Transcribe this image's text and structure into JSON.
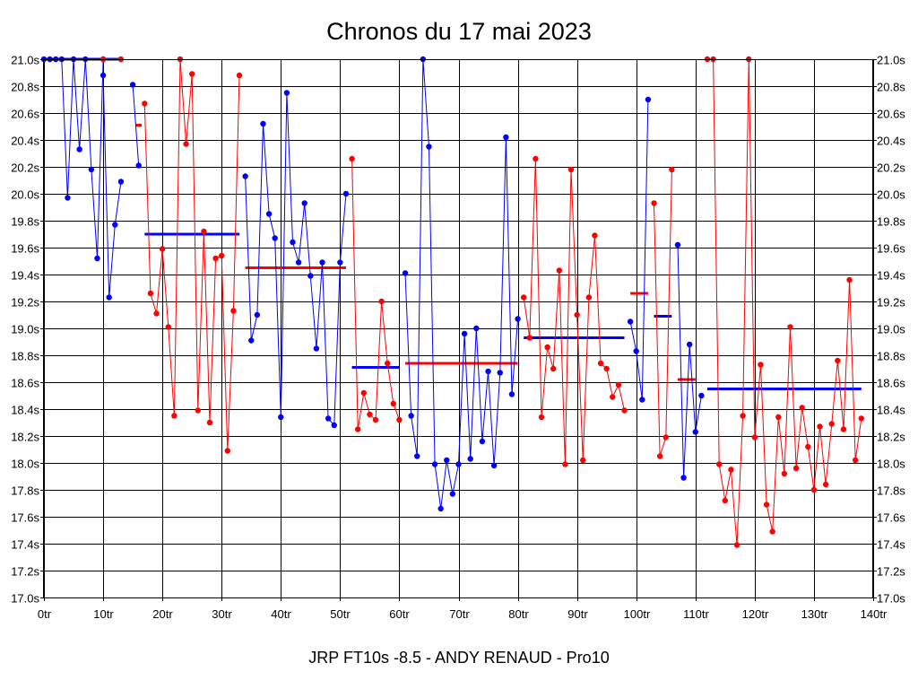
{
  "chart_data": {
    "type": "line",
    "title": "Chronos du 17 mai 2023",
    "caption": "JRP FT10s -8.5 - ANDY RENAUD - Pro10",
    "xlim": [
      0,
      140
    ],
    "ylim": [
      17.0,
      21.0
    ],
    "grid": true,
    "x_ticks": [
      {
        "v": 0,
        "label": "0tr"
      },
      {
        "v": 10,
        "label": "10tr"
      },
      {
        "v": 20,
        "label": "20tr"
      },
      {
        "v": 30,
        "label": "30tr"
      },
      {
        "v": 40,
        "label": "40tr"
      },
      {
        "v": 50,
        "label": "50tr"
      },
      {
        "v": 60,
        "label": "60tr"
      },
      {
        "v": 70,
        "label": "70tr"
      },
      {
        "v": 80,
        "label": "80tr"
      },
      {
        "v": 90,
        "label": "90tr"
      },
      {
        "v": 100,
        "label": "100tr"
      },
      {
        "v": 110,
        "label": "110tr"
      },
      {
        "v": 120,
        "label": "120tr"
      },
      {
        "v": 130,
        "label": "130tr"
      },
      {
        "v": 140,
        "label": "140tr"
      }
    ],
    "y_ticks": [
      {
        "v": 21.0,
        "label": "21.0s"
      },
      {
        "v": 20.8,
        "label": "20.8s"
      },
      {
        "v": 20.6,
        "label": "20.6s"
      },
      {
        "v": 20.4,
        "label": "20.4s"
      },
      {
        "v": 20.2,
        "label": "20.2s"
      },
      {
        "v": 20.0,
        "label": "20.0s"
      },
      {
        "v": 19.8,
        "label": "19.8s"
      },
      {
        "v": 19.6,
        "label": "19.6s"
      },
      {
        "v": 19.4,
        "label": "19.4s"
      },
      {
        "v": 19.2,
        "label": "19.2s"
      },
      {
        "v": 19.0,
        "label": "19.0s"
      },
      {
        "v": 18.8,
        "label": "18.8s"
      },
      {
        "v": 18.6,
        "label": "18.6s"
      },
      {
        "v": 18.4,
        "label": "18.4s"
      },
      {
        "v": 18.2,
        "label": "18.2s"
      },
      {
        "v": 18.0,
        "label": "18.0s"
      },
      {
        "v": 17.8,
        "label": "17.8s"
      },
      {
        "v": 17.6,
        "label": "17.6s"
      },
      {
        "v": 17.4,
        "label": "17.4s"
      },
      {
        "v": 17.2,
        "label": "17.2s"
      },
      {
        "v": 17.0,
        "label": "17.0s"
      }
    ],
    "colors": {
      "blue": "#0000ff",
      "red": "#ff0000"
    },
    "segments": [
      {
        "color": "blue",
        "points": [
          [
            0,
            21.0
          ],
          [
            1,
            21.0
          ],
          [
            2,
            21.0
          ],
          [
            3,
            21.0
          ],
          [
            4,
            19.97
          ],
          [
            5,
            21.0
          ],
          [
            6,
            20.33
          ],
          [
            7,
            21.0
          ],
          [
            8,
            20.18
          ],
          [
            9,
            19.52
          ],
          [
            10,
            21.0
          ]
        ],
        "mean": 21.0,
        "mean_x": [
          0,
          13
        ]
      },
      {
        "color": "red",
        "points": [
          [
            10,
            21.0
          ],
          [
            13,
            21.0
          ]
        ],
        "mean": null
      },
      {
        "color": "blue",
        "points": [
          [
            10,
            20.88
          ],
          [
            11,
            19.23
          ],
          [
            12,
            19.77
          ],
          [
            13,
            20.09
          ]
        ],
        "mean": null
      },
      {
        "color": "red",
        "points": [],
        "mean": 20.51,
        "mean_x": [
          15.5,
          16.5
        ]
      },
      {
        "color": "blue",
        "points": [
          [
            15,
            20.81
          ],
          [
            16,
            20.21
          ]
        ],
        "mean": 19.7,
        "mean_x": [
          17,
          33
        ]
      },
      {
        "color": "red",
        "points": [
          [
            17,
            20.67
          ],
          [
            18,
            19.26
          ],
          [
            19,
            19.11
          ],
          [
            20,
            19.59
          ],
          [
            21,
            19.01
          ],
          [
            22,
            18.35
          ],
          [
            23,
            21.0
          ],
          [
            24,
            20.37
          ],
          [
            25,
            20.89
          ],
          [
            26,
            18.39
          ],
          [
            27,
            19.72
          ],
          [
            28,
            18.3
          ],
          [
            29,
            19.52
          ],
          [
            30,
            19.54
          ],
          [
            31,
            18.09
          ],
          [
            32,
            19.13
          ],
          [
            33,
            20.88
          ]
        ],
        "mean": null
      },
      {
        "color": "blue",
        "points": [
          [
            34,
            20.13
          ],
          [
            35,
            18.91
          ],
          [
            36,
            19.1
          ],
          [
            37,
            20.52
          ],
          [
            38,
            19.85
          ],
          [
            39,
            19.67
          ],
          [
            40,
            18.34
          ],
          [
            41,
            20.75
          ],
          [
            42,
            19.64
          ],
          [
            43,
            19.49
          ],
          [
            44,
            19.93
          ],
          [
            45,
            19.39
          ],
          [
            46,
            18.85
          ],
          [
            47,
            19.49
          ],
          [
            48,
            18.33
          ],
          [
            49,
            18.28
          ],
          [
            50,
            19.49
          ],
          [
            51,
            20.0
          ]
        ],
        "mean": null
      },
      {
        "color": "red",
        "points": [],
        "mean": 19.45,
        "mean_x": [
          34,
          51
        ]
      },
      {
        "color": "red",
        "points": [
          [
            52,
            20.26
          ],
          [
            53,
            18.25
          ],
          [
            54,
            18.52
          ],
          [
            55,
            18.36
          ],
          [
            56,
            18.32
          ],
          [
            57,
            19.2
          ],
          [
            58,
            18.74
          ],
          [
            59,
            18.44
          ],
          [
            60,
            18.32
          ]
        ],
        "mean": null
      },
      {
        "color": "blue",
        "points": [],
        "mean": 18.71,
        "mean_x": [
          52,
          60
        ]
      },
      {
        "color": "blue",
        "points": [
          [
            61,
            19.41
          ],
          [
            62,
            18.35
          ],
          [
            63,
            18.05
          ],
          [
            64,
            21.0
          ],
          [
            65,
            20.35
          ],
          [
            66,
            17.99
          ],
          [
            67,
            17.66
          ],
          [
            68,
            18.02
          ],
          [
            69,
            17.77
          ],
          [
            70,
            17.99
          ],
          [
            71,
            18.96
          ],
          [
            72,
            18.03
          ],
          [
            73,
            19.0
          ],
          [
            74,
            18.16
          ],
          [
            75,
            18.68
          ],
          [
            76,
            17.98
          ],
          [
            77,
            18.67
          ],
          [
            78,
            20.42
          ],
          [
            79,
            18.51
          ],
          [
            80,
            19.07
          ]
        ],
        "mean": null
      },
      {
        "color": "red",
        "points": [],
        "mean": 18.74,
        "mean_x": [
          61,
          80
        ]
      },
      {
        "color": "red",
        "points": [
          [
            81,
            19.23
          ],
          [
            82,
            18.93
          ],
          [
            83,
            20.26
          ],
          [
            84,
            18.34
          ],
          [
            85,
            18.86
          ],
          [
            86,
            18.7
          ],
          [
            87,
            19.43
          ],
          [
            88,
            17.99
          ],
          [
            89,
            20.18
          ],
          [
            90,
            19.1
          ],
          [
            91,
            18.02
          ],
          [
            92,
            19.23
          ],
          [
            93,
            19.69
          ],
          [
            94,
            18.74
          ],
          [
            95,
            18.7
          ],
          [
            96,
            18.49
          ],
          [
            97,
            18.58
          ],
          [
            98,
            18.39
          ]
        ],
        "mean": null
      },
      {
        "color": "blue",
        "points": [],
        "mean": 18.93,
        "mean_x": [
          81,
          98
        ]
      },
      {
        "color": "blue",
        "points": [
          [
            99,
            19.05
          ],
          [
            100,
            18.83
          ],
          [
            101,
            18.47
          ],
          [
            102,
            20.7
          ]
        ],
        "mean": null
      },
      {
        "color": "red",
        "points": [],
        "mean": 19.26,
        "mean_x": [
          99,
          102
        ]
      },
      {
        "color": "red",
        "points": [
          [
            103,
            19.93
          ],
          [
            104,
            18.05
          ],
          [
            105,
            18.19
          ],
          [
            106,
            20.18
          ]
        ],
        "mean": null
      },
      {
        "color": "blue",
        "points": [],
        "mean": 19.09,
        "mean_x": [
          103,
          106
        ]
      },
      {
        "color": "blue",
        "points": [
          [
            107,
            19.62
          ],
          [
            108,
            17.89
          ],
          [
            109,
            18.88
          ],
          [
            110,
            18.23
          ],
          [
            111,
            18.5
          ]
        ],
        "mean": null
      },
      {
        "color": "red",
        "points": [],
        "mean": 18.62,
        "mean_x": [
          107,
          110
        ]
      },
      {
        "color": "red",
        "points": [
          [
            112,
            21.0
          ],
          [
            113,
            21.0
          ],
          [
            114,
            17.99
          ],
          [
            115,
            17.72
          ],
          [
            116,
            17.95
          ],
          [
            117,
            17.39
          ],
          [
            118,
            18.35
          ],
          [
            119,
            21.0
          ],
          [
            120,
            18.19
          ],
          [
            121,
            18.73
          ],
          [
            122,
            17.69
          ],
          [
            123,
            17.49
          ],
          [
            124,
            18.34
          ],
          [
            125,
            17.92
          ],
          [
            126,
            19.01
          ],
          [
            127,
            17.96
          ],
          [
            128,
            18.41
          ],
          [
            129,
            18.12
          ],
          [
            130,
            17.8
          ],
          [
            131,
            18.27
          ],
          [
            132,
            17.84
          ],
          [
            133,
            18.29
          ],
          [
            134,
            18.76
          ],
          [
            135,
            18.25
          ],
          [
            136,
            19.36
          ],
          [
            137,
            18.02
          ],
          [
            138,
            18.33
          ]
        ],
        "mean": null
      },
      {
        "color": "blue",
        "points": [],
        "mean": 18.55,
        "mean_x": [
          112,
          138
        ]
      }
    ]
  }
}
